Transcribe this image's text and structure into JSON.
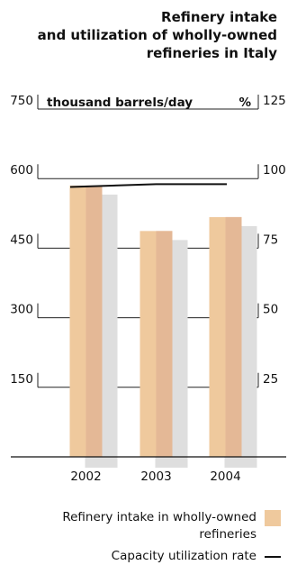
{
  "chart_data": {
    "type": "bar",
    "title_lines": [
      "Refinery intake",
      "and utilization of wholly-owned",
      "refineries in Italy"
    ],
    "left_unit_label": "thousand barrels/day",
    "right_unit_label": "%",
    "categories": [
      "2002",
      "2003",
      "2004"
    ],
    "ylim_left": [
      0,
      750
    ],
    "ylim_right": [
      0,
      125
    ],
    "yticks_left": [
      "750",
      "600",
      "450",
      "300",
      "150"
    ],
    "yticks_right": [
      "125",
      "100",
      "75",
      "50",
      "25"
    ],
    "series": [
      {
        "name": "Refinery intake in wholly-owned refineries",
        "type": "bar",
        "axis": "left",
        "values": [
          585,
          487,
          517
        ],
        "color": "#EFC99D",
        "shade_color": "#E4B896",
        "shadow_color": "#DEDEDE"
      },
      {
        "name": "Capacity utilization rate",
        "type": "line",
        "axis": "right",
        "values": [
          97,
          98,
          98
        ],
        "color": "#111111"
      }
    ],
    "legend": {
      "position": "bottom-right",
      "items": [
        {
          "label_lines": [
            "Refinery intake in wholly-owned",
            "refineries"
          ],
          "swatch": "#EFC99D"
        },
        {
          "label_lines": [
            "Capacity utilization rate"
          ],
          "swatch": "#111111"
        }
      ]
    }
  }
}
